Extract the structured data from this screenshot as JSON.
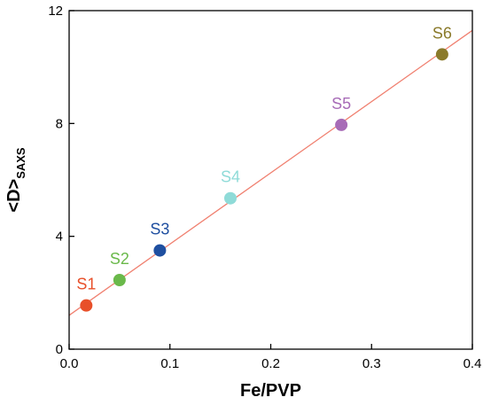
{
  "chart_data": {
    "type": "scatter",
    "xlabel": "Fe/PVP",
    "ylabel_main": "<D>",
    "ylabel_sub": "SAXS",
    "xlim": [
      0.0,
      0.4
    ],
    "ylim": [
      0,
      12
    ],
    "x_ticks": [
      "0.0",
      "0.1",
      "0.2",
      "0.3",
      "0.4"
    ],
    "y_ticks": [
      "0",
      "4",
      "8",
      "12"
    ],
    "grid": false,
    "points": [
      {
        "label": "S1",
        "x": 0.017,
        "y": 1.55,
        "color": "#e8502a"
      },
      {
        "label": "S2",
        "x": 0.05,
        "y": 2.45,
        "color": "#6ab94a"
      },
      {
        "label": "S3",
        "x": 0.09,
        "y": 3.5,
        "color": "#1f4fa0"
      },
      {
        "label": "S4",
        "x": 0.16,
        "y": 5.35,
        "color": "#8fdbd8"
      },
      {
        "label": "S5",
        "x": 0.27,
        "y": 7.95,
        "color": "#a76bb7"
      },
      {
        "label": "S6",
        "x": 0.37,
        "y": 10.45,
        "color": "#8a7a2a"
      }
    ],
    "fit_line": {
      "color": "#f08070",
      "intercept": 1.2,
      "slope": 25.25
    }
  }
}
